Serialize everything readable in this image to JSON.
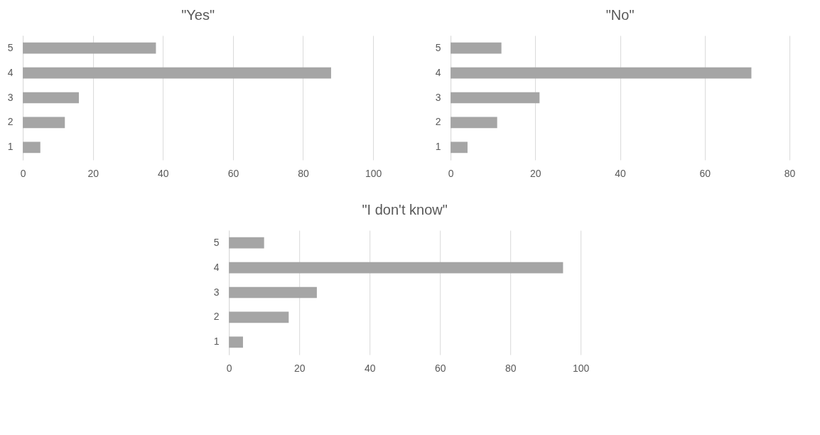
{
  "chart_data": [
    {
      "type": "bar",
      "orientation": "horizontal",
      "title": "\"Yes\"",
      "categories": [
        "5",
        "4",
        "3",
        "2",
        "1"
      ],
      "values": [
        38,
        88,
        16,
        12,
        5
      ],
      "color": "#a5a5a5",
      "xlim": [
        0,
        100
      ],
      "xticks": [
        0,
        20,
        40,
        60,
        80,
        100
      ],
      "grid": "x"
    },
    {
      "type": "bar",
      "orientation": "horizontal",
      "title": "\"No\"",
      "categories": [
        "5",
        "4",
        "3",
        "2",
        "1"
      ],
      "values": [
        12,
        71,
        21,
        11,
        4
      ],
      "color": "#a5a5a5",
      "xlim": [
        0,
        80
      ],
      "xticks": [
        0,
        20,
        40,
        60,
        80
      ],
      "grid": "x"
    },
    {
      "type": "bar",
      "orientation": "horizontal",
      "title": "\"I don't know\"",
      "categories": [
        "5",
        "4",
        "3",
        "2",
        "1"
      ],
      "values": [
        10,
        95,
        25,
        17,
        4
      ],
      "color": "#a5a5a5",
      "xlim": [
        0,
        100
      ],
      "xticks": [
        0,
        20,
        40,
        60,
        80,
        100
      ],
      "grid": "x"
    }
  ]
}
